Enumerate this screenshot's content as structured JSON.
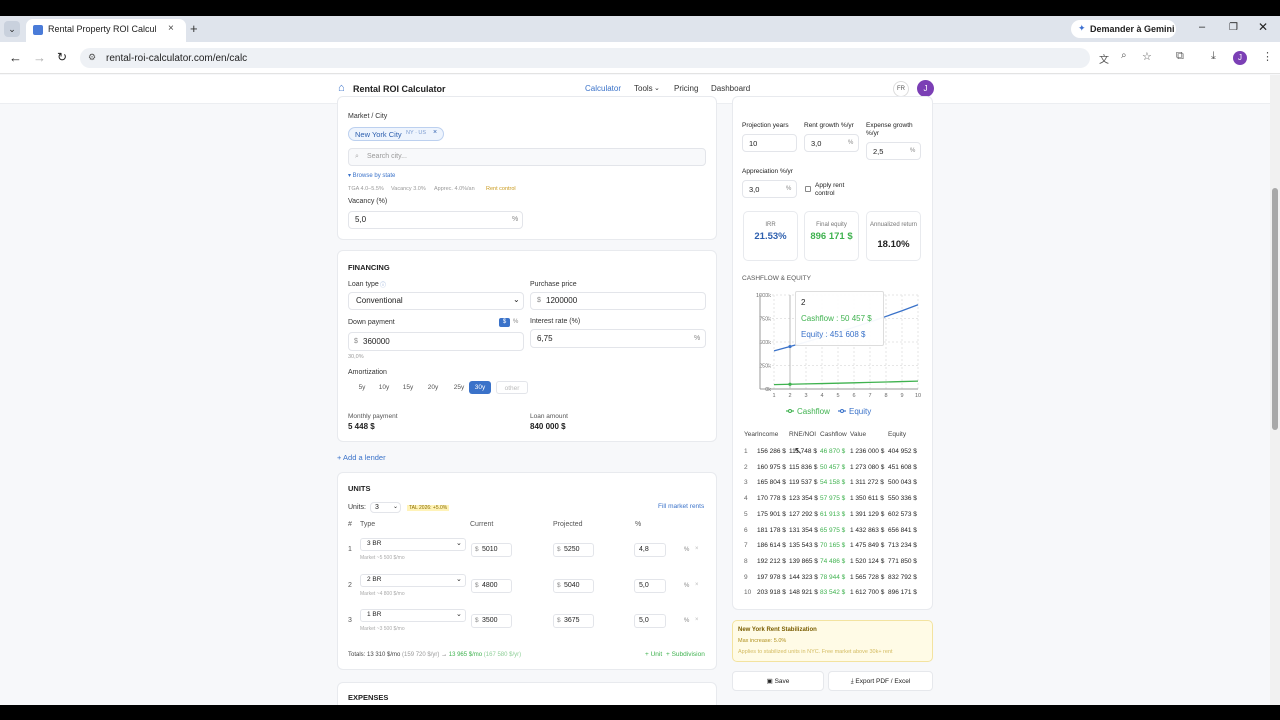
{
  "browser": {
    "tab_title": "Rental Property ROI Calculator",
    "url": "rental-roi-calculator.com/en/calc",
    "gemini": "Demander à Gemini",
    "profile": "J"
  },
  "nav": {
    "brand": "Rental ROI Calculator",
    "links": [
      "Calculator",
      "Tools",
      "Pricing",
      "Dashboard"
    ],
    "lang": "FR",
    "avatar": "J"
  },
  "market": {
    "label": "Market / City",
    "city": "New York City",
    "city_tag": "NY · US",
    "search_placeholder": "Search city...",
    "browse": "▾ Browse by state",
    "stats": [
      "TGA 4.0–5.5%",
      "Vacancy 3.0%",
      "Apprec. 4.0%/an"
    ],
    "rent_control": "Rent control",
    "vacancy_label": "Vacancy (%)",
    "vacancy": "5,0",
    "pct": "%"
  },
  "financing": {
    "title": "FINANCING",
    "loan_type_label": "Loan type",
    "loan_type": "Conventional",
    "purchase_label": "Purchase price",
    "currency": "$",
    "purchase": "1200000",
    "down_label": "Down payment",
    "down_toggle": [
      "$",
      "%"
    ],
    "down": "360000",
    "down_pct": "30,0%",
    "rate_label": "Interest rate (%)",
    "rate": "6,75",
    "amort_label": "Amortization",
    "amort": [
      "5y",
      "10y",
      "15y",
      "20y",
      "25y",
      "30y",
      "other"
    ],
    "amort_selected": "30y",
    "monthly_label": "Monthly payment",
    "monthly": "5 448 $",
    "loan_label": "Loan amount",
    "loan": "840 000 $"
  },
  "add_lender": "+ Add a lender",
  "units": {
    "title": "UNITS",
    "count_label": "Units:",
    "count": "3",
    "tag": "TAL 2026: +5.0%",
    "fill": "Fill market rents",
    "headers": [
      "#",
      "Type",
      "Current",
      "Projected",
      "%"
    ],
    "rows": [
      {
        "n": "1",
        "type": "3 BR",
        "market": "Market ~5 500 $/mo",
        "current": "5010",
        "projected": "5250",
        "pct": "4,8"
      },
      {
        "n": "2",
        "type": "2 BR",
        "market": "Market ~4 800 $/mo",
        "current": "4800",
        "projected": "5040",
        "pct": "5,0"
      },
      {
        "n": "3",
        "type": "1 BR",
        "market": "Market ~3 500 $/mo",
        "current": "3500",
        "projected": "3675",
        "pct": "5,0"
      }
    ],
    "totals": "Totals: 13 310 $/mo",
    "totals_annual": "(159 720 $/yr)",
    "arrow": "→",
    "totals_proj": "13 965 $/mo",
    "totals_proj_annual": "(167 580 $/yr)",
    "add_unit": "+ Unit",
    "add_sub": "+ Subdivision"
  },
  "expenses": {
    "title": "EXPENSES"
  },
  "projection": {
    "years_label": "Projection years",
    "years": "10",
    "rent_growth_label": "Rent growth %/yr",
    "rent_growth": "3,0",
    "expense_growth_label": "Expense growth %/yr",
    "expense_growth": "2,5",
    "appreciation_label": "Appreciation %/yr",
    "appreciation": "3,0",
    "rent_control_label": "Apply rent control"
  },
  "kpis": [
    {
      "label": "IRR",
      "value": "21.53%"
    },
    {
      "label": "Final equity",
      "value": "896 171 $"
    },
    {
      "label": "Annualized return",
      "value": "18.10%"
    }
  ],
  "chart_data": {
    "type": "line",
    "title": "CASHFLOW & EQUITY",
    "x": [
      1,
      2,
      3,
      4,
      5,
      6,
      7,
      8,
      9,
      10
    ],
    "series": [
      {
        "name": "Cashflow",
        "color": "#3fb24f",
        "values": [
          46870,
          50457,
          54158,
          57975,
          61913,
          65975,
          70165,
          74486,
          78944,
          83542
        ]
      },
      {
        "name": "Equity",
        "color": "#3a72c9",
        "values": [
          404952,
          451608,
          500043,
          550336,
          602573,
          656841,
          713234,
          771850,
          832792,
          896171
        ]
      }
    ],
    "xlim": [
      1,
      10
    ],
    "xticks": [
      1,
      2,
      3,
      4,
      5,
      6,
      7,
      8,
      9,
      10
    ],
    "ylim": [
      0,
      1000000
    ],
    "yticks": [
      {
        "value": 0,
        "label": "0k"
      },
      {
        "value": 250000,
        "label": "250k"
      },
      {
        "value": 500000,
        "label": "500k"
      },
      {
        "value": 750000,
        "label": "750k"
      },
      {
        "value": 1000000,
        "label": "1000k"
      }
    ],
    "grid": true,
    "hover_x": 2,
    "tooltip": {
      "label": "2",
      "cashflow": "Cashflow : 50 457 $",
      "equity": "Equity : 451 608 $"
    }
  },
  "table": {
    "headers": [
      "Year",
      "Income",
      "RNE/NOI",
      "Cashflow",
      "Value",
      "Equity"
    ],
    "rows": [
      [
        "1",
        "156 286 $",
        "111 748 $",
        "46 870 $",
        "1 236 000 $",
        "404 952 $"
      ],
      [
        "2",
        "160 975 $",
        "115 836 $",
        "50 457 $",
        "1 273 080 $",
        "451 608 $"
      ],
      [
        "3",
        "165 804 $",
        "119 537 $",
        "54 158 $",
        "1 311 272 $",
        "500 043 $"
      ],
      [
        "4",
        "170 778 $",
        "123 354 $",
        "57 975 $",
        "1 350 611 $",
        "550 336 $"
      ],
      [
        "5",
        "175 901 $",
        "127 292 $",
        "61 913 $",
        "1 391 129 $",
        "602 573 $"
      ],
      [
        "6",
        "181 178 $",
        "131 354 $",
        "65 975 $",
        "1 432 863 $",
        "656 841 $"
      ],
      [
        "7",
        "186 614 $",
        "135 543 $",
        "70 165 $",
        "1 475 849 $",
        "713 234 $"
      ],
      [
        "8",
        "192 212 $",
        "139 865 $",
        "74 486 $",
        "1 520 124 $",
        "771 850 $"
      ],
      [
        "9",
        "197 978 $",
        "144 323 $",
        "78 944 $",
        "1 565 728 $",
        "832 792 $"
      ],
      [
        "10",
        "203 918 $",
        "148 921 $",
        "83 542 $",
        "1 612 700 $",
        "896 171 $"
      ]
    ]
  },
  "notice": {
    "title": "New York Rent Stabilization",
    "line1": "Max increase: 5.0%",
    "line2": "Applies to stabilized units in NYC. Free market above 30k+ rent"
  },
  "actions": [
    "Save",
    "Export PDF / Excel"
  ]
}
